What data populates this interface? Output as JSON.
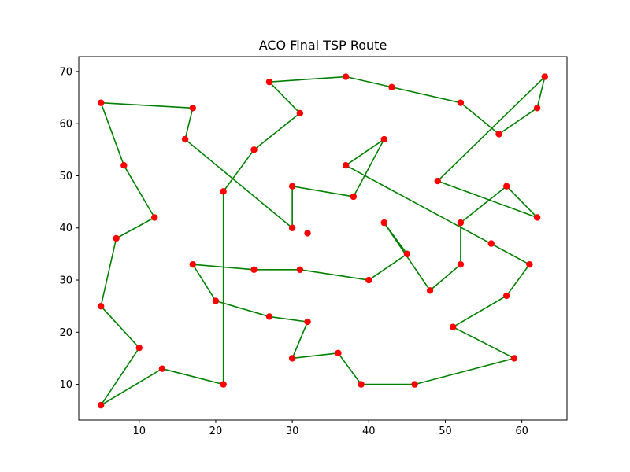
{
  "chart_data": {
    "type": "line",
    "title": "ACO Final TSP Route",
    "xlabel": "",
    "ylabel": "",
    "xlim": [
      2.1,
      65.9
    ],
    "ylim": [
      3.15,
      72.85
    ],
    "xticks": [
      10,
      20,
      30,
      40,
      50,
      60
    ],
    "yticks": [
      10,
      20,
      30,
      40,
      50,
      60,
      70
    ],
    "grid": false,
    "legend": "none",
    "route_color": "#008000",
    "point_color": "#ff0000",
    "route": [
      [
        5,
        64
      ],
      [
        17,
        63
      ],
      [
        16,
        57
      ],
      [
        30,
        40
      ],
      [
        30,
        48
      ],
      [
        38,
        46
      ],
      [
        42,
        57
      ],
      [
        37,
        52
      ],
      [
        61,
        33
      ],
      [
        58,
        27
      ],
      [
        51,
        21
      ],
      [
        59,
        15
      ],
      [
        46,
        10
      ],
      [
        39,
        10
      ],
      [
        36,
        16
      ],
      [
        30,
        15
      ],
      [
        32,
        22
      ],
      [
        27,
        23
      ],
      [
        20,
        26
      ],
      [
        17,
        33
      ],
      [
        25,
        32
      ],
      [
        31,
        32
      ],
      [
        40,
        30
      ],
      [
        45,
        35
      ],
      [
        42,
        41
      ],
      [
        48,
        28
      ],
      [
        52,
        33
      ],
      [
        52,
        41
      ],
      [
        58,
        48
      ],
      [
        62,
        42
      ],
      [
        49,
        49
      ],
      [
        63,
        69
      ],
      [
        62,
        63
      ],
      [
        57,
        58
      ],
      [
        52,
        64
      ],
      [
        43,
        67
      ],
      [
        37,
        69
      ],
      [
        27,
        68
      ],
      [
        31,
        62
      ],
      [
        25,
        55
      ],
      [
        21,
        47
      ],
      [
        21,
        10
      ],
      [
        13,
        13
      ],
      [
        5,
        6
      ],
      [
        10,
        17
      ],
      [
        5,
        25
      ],
      [
        7,
        38
      ],
      [
        12,
        42
      ],
      [
        8,
        52
      ],
      [
        5,
        64
      ]
    ],
    "extra_points": [
      [
        56,
        37
      ],
      [
        32,
        39
      ]
    ]
  }
}
